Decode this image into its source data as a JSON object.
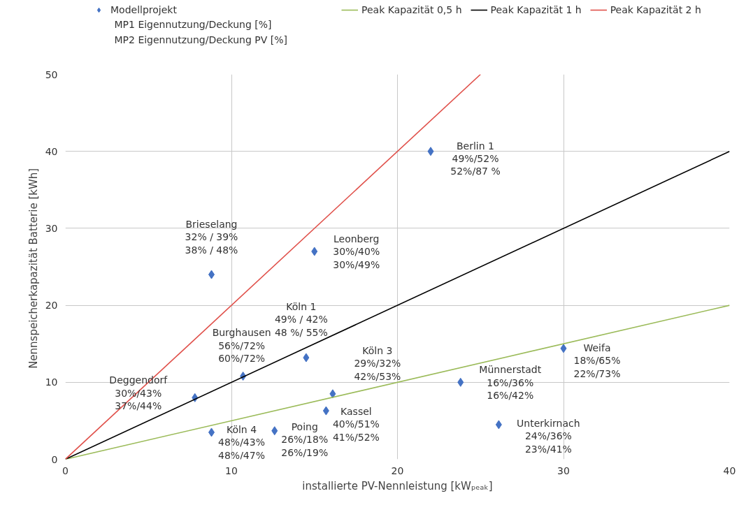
{
  "chart_data": {
    "type": "scatter",
    "xlabel": "installierte PV-Nennleistung [kWₚₑₐₖ]",
    "ylabel": "Nennspeicherkapazität  Batterie [kWh]",
    "xlim": [
      0,
      40
    ],
    "ylim": [
      0,
      50
    ],
    "xticks": [
      0,
      10,
      20,
      30,
      40
    ],
    "yticks": [
      0,
      10,
      20,
      30,
      40,
      50
    ],
    "grid": true,
    "legend": "top",
    "series": [
      {
        "name": "Modellprojekt",
        "marker": "diamond",
        "color": "#4472c4",
        "x": [
          22,
          8.8,
          15.0,
          14.5,
          10.7,
          7.8,
          8.8,
          12.6,
          15.7,
          16.1,
          23.8,
          30.0,
          26.1
        ],
        "values": [
          40,
          24,
          27,
          13.2,
          10.8,
          8.0,
          3.5,
          3.7,
          6.3,
          8.5,
          10.0,
          14.4,
          4.5
        ]
      },
      {
        "name": "Peak Kapazität 0,5 h",
        "type": "line",
        "color": "#9bbb59",
        "x": [
          0,
          40
        ],
        "values": [
          0,
          20
        ]
      },
      {
        "name": "Peak Kapazität 1 h",
        "type": "line",
        "color": "#000000",
        "x": [
          0,
          40
        ],
        "values": [
          0,
          40
        ]
      },
      {
        "name": "Peak Kapazität 2 h",
        "type": "line",
        "color": "#e0504a",
        "x": [
          0,
          25
        ],
        "values": [
          0,
          50
        ]
      }
    ],
    "annotations": [
      "MP1 Eigennutzung/Deckung [%]",
      "MP2 Eigennutzung/Deckung PV [%]",
      {
        "text": "Berlin 1\n49%/52%\n52%/87 %",
        "x": 22,
        "y": 40
      },
      {
        "text": "Brieselang\n32% / 39%\n38% / 48%",
        "x": 8.8,
        "y": 24
      },
      {
        "text": "Leonberg\n30%/40%\n30%/49%",
        "x": 15.0,
        "y": 27
      },
      {
        "text": "Köln 1\n49% / 42%\n48 %/ 55%",
        "x": 14.5,
        "y": 13.2
      },
      {
        "text": "Burghausen\n56%/72%\n60%/72%",
        "x": 10.7,
        "y": 10.8
      },
      {
        "text": "Deggendorf\n30%/43%\n37%/44%",
        "x": 7.8,
        "y": 8.0
      },
      {
        "text": "Köln 4\n48%/43%\n48%/47%",
        "x": 8.8,
        "y": 3.5
      },
      {
        "text": "Poing\n26%/18%\n26%/19%",
        "x": 12.6,
        "y": 3.7
      },
      {
        "text": "Kassel\n40%/51%\n41%/52%",
        "x": 15.7,
        "y": 6.3
      },
      {
        "text": "Köln 3\n29%/32%\n42%/53%",
        "x": 16.1,
        "y": 8.5
      },
      {
        "text": "Münnerstadt\n16%/36%\n16%/42%",
        "x": 23.8,
        "y": 10.0
      },
      {
        "text": "Weifa\n18%/65%\n22%/73%",
        "x": 30.0,
        "y": 14.4
      },
      {
        "text": "Unterkirnach\n24%/36%\n23%/41%",
        "x": 26.1,
        "y": 4.5
      }
    ]
  }
}
